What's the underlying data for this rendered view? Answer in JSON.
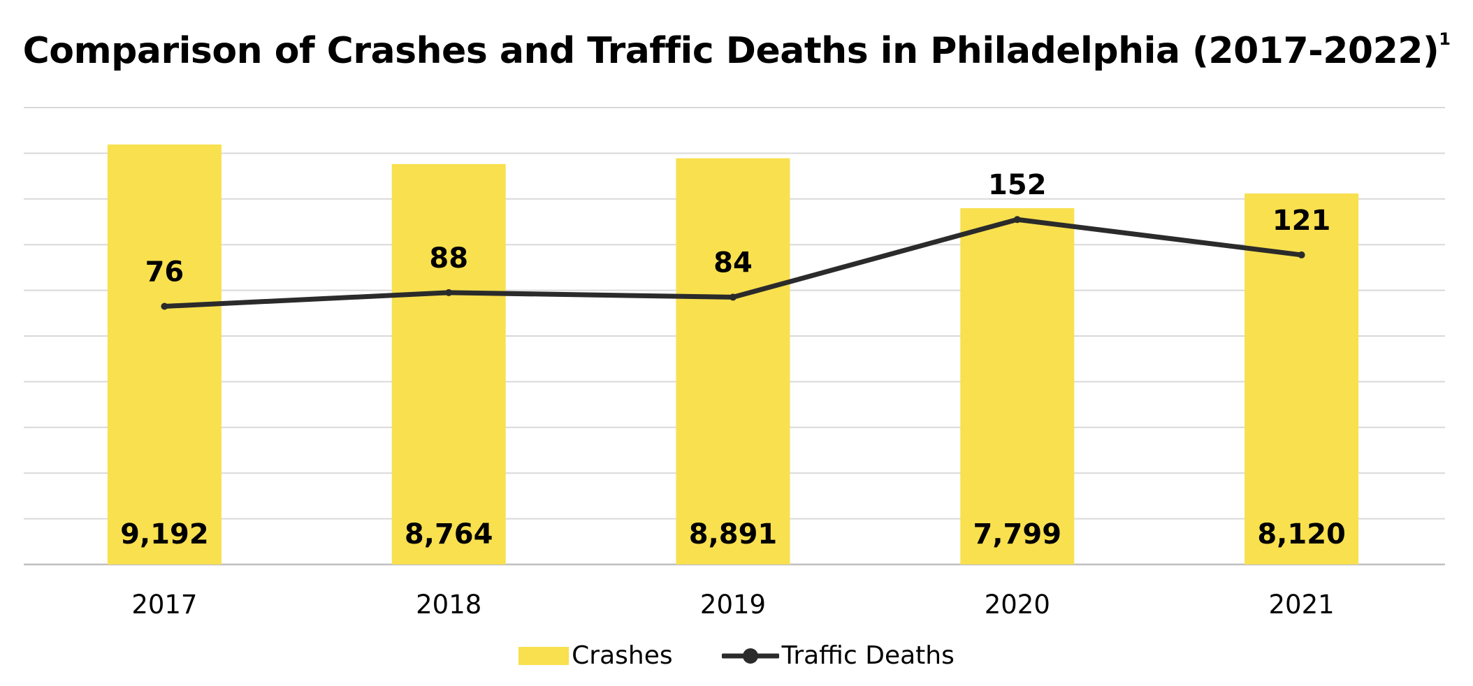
{
  "title": "Comparison of Crashes and Traffic Deaths in Philadelphia (2017-2022)",
  "title_footnote": "1",
  "colors": {
    "bar": "#f8e04f",
    "line": "#2b2b2b",
    "grid": "#d9d9d9",
    "axis": "#bfbfbf",
    "text": "#000000"
  },
  "legend": {
    "crashes_label": "Crashes",
    "deaths_label": "Traffic Deaths",
    "placement": "bottom-center"
  },
  "chart_data": {
    "type": "bar",
    "categories": [
      "2017",
      "2018",
      "2019",
      "2020",
      "2021"
    ],
    "series": [
      {
        "name": "Crashes",
        "type": "bar",
        "values": [
          9192,
          8764,
          8891,
          7799,
          8120
        ],
        "labels": [
          "9,192",
          "8,764",
          "8,891",
          "7,799",
          "8,120"
        ],
        "ylim": [
          0,
          10000
        ]
      },
      {
        "name": "Traffic Deaths",
        "type": "line",
        "values": [
          76,
          88,
          84,
          152,
          121
        ],
        "labels": [
          "76",
          "88",
          "84",
          "152",
          "121"
        ],
        "ylim": [
          -150,
          250
        ]
      }
    ],
    "xlabel": "",
    "ylabel": "",
    "grid": true
  }
}
